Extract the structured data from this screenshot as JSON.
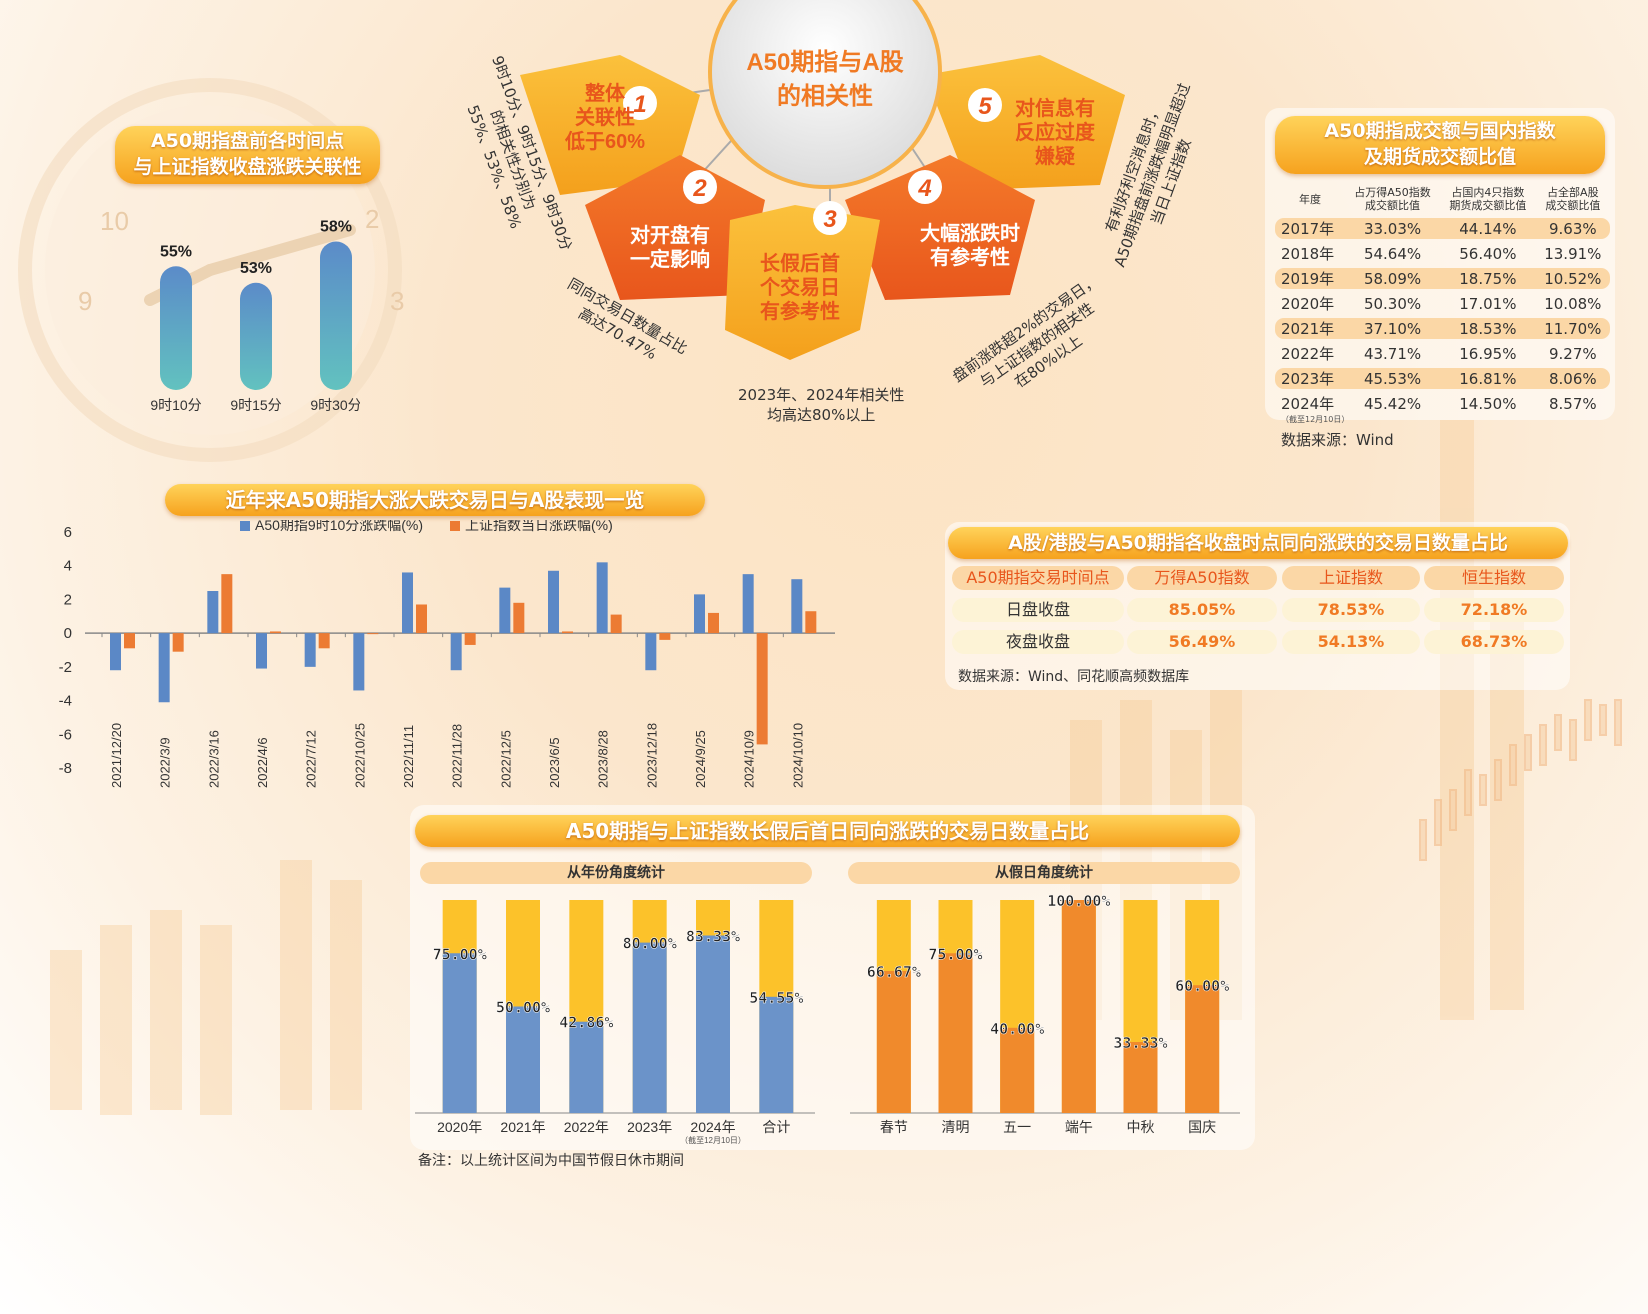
{
  "center": {
    "title_line1": "A50期指与A股",
    "title_line2": "的相关性"
  },
  "petals": [
    {
      "num": "1",
      "l1": "整体",
      "l2": "关联性",
      "l3": "低于60%"
    },
    {
      "num": "2",
      "l1": "对开盘有",
      "l2": "一定影响",
      "l3": ""
    },
    {
      "num": "3",
      "l1": "长假后首",
      "l2": "个交易日",
      "l3": "有参考性"
    },
    {
      "num": "4",
      "l1": "大幅涨跌时",
      "l2": "有参考性",
      "l3": ""
    },
    {
      "num": "5",
      "l1": "对信息有",
      "l2": "反应过度",
      "l3": "嫌疑"
    }
  ],
  "notes": {
    "n1a": "9时10分、9时15分、9时30分",
    "n1b": "的相关性分别为",
    "n1c": "55%、53%、58%",
    "n2a": "同向交易日数量占比",
    "n2b": "高达70.47%",
    "n3a": "2023年、2024年相关性",
    "n3b": "均高达80%以上",
    "n4a": "盘前涨跌超2%的交易日，",
    "n4b": "与上证指数的相关性",
    "n4c": "在80%以上",
    "n5a": "有利好利空消息时，",
    "n5b": "A50期指盘前涨跌幅明显超过",
    "n5c": "当日上证指数"
  },
  "corr": {
    "title1": "A50期指盘前各时间点",
    "title2": "与上证指数收盘涨跌关联性"
  },
  "table1": {
    "title1": "A50期指成交额与国内指数",
    "title2": "及期货成交额比值",
    "headers": [
      "年度",
      "占万得A50指数\n成交额比值",
      "占国内4只指数\n期货成交额比值",
      "占全部A股\n成交额比值"
    ],
    "rows": [
      [
        "2017年",
        "33.03%",
        "44.14%",
        "9.63%"
      ],
      [
        "2018年",
        "54.64%",
        "56.40%",
        "13.91%"
      ],
      [
        "2019年",
        "58.09%",
        "18.75%",
        "10.52%"
      ],
      [
        "2020年",
        "50.30%",
        "17.01%",
        "10.08%"
      ],
      [
        "2021年",
        "37.10%",
        "18.53%",
        "11.70%"
      ],
      [
        "2022年",
        "43.71%",
        "16.95%",
        "9.27%"
      ],
      [
        "2023年",
        "45.53%",
        "16.81%",
        "8.06%"
      ],
      [
        "2024年",
        "45.42%",
        "14.50%",
        "8.57%"
      ]
    ],
    "note_2024": "（截至12月10日）",
    "source": "数据来源：Wind"
  },
  "bigbar": {
    "title": "近年来A50期指大涨大跌交易日与A股表现一览"
  },
  "table2": {
    "title": "A股/港股与A50期指各收盘时点同向涨跌的交易日数量占比",
    "headers": [
      "A50期指交易时间点",
      "万得A50指数",
      "上证指数",
      "恒生指数"
    ],
    "rows": [
      [
        "日盘收盘",
        "85.05%",
        "78.53%",
        "72.18%"
      ],
      [
        "夜盘收盘",
        "56.49%",
        "54.13%",
        "68.73%"
      ]
    ],
    "source": "数据来源：Wind、同花顺高频数据库"
  },
  "holiday": {
    "title": "A50期指与上证指数长假后首日同向涨跌的交易日数量占比",
    "left_sub": "从年份角度统计",
    "right_sub": "从假日角度统计",
    "note_2024": "（截至12月10日）",
    "remark": "备注：以上统计区间为中国节假日休市期间"
  },
  "chart_data": [
    {
      "type": "bar",
      "title": "A50期指盘前各时间点与上证指数收盘涨跌关联性",
      "categories": [
        "9时10分",
        "9时15分",
        "9时30分"
      ],
      "values": [
        55,
        53,
        58
      ],
      "labels": [
        "55%",
        "53%",
        "58%"
      ],
      "ylim": [
        40,
        60
      ],
      "color": "#5a92c8"
    },
    {
      "type": "bar",
      "title": "近年来A50期指大涨大跌交易日与A股表现一览",
      "categories": [
        "2021/12/20",
        "2022/3/9",
        "2022/3/16",
        "2022/4/6",
        "2022/7/12",
        "2022/10/25",
        "2022/11/11",
        "2022/11/28",
        "2022/12/5",
        "2023/6/5",
        "2023/8/28",
        "2023/12/18",
        "2024/9/25",
        "2024/10/9",
        "2024/10/10"
      ],
      "series": [
        {
          "name": "A50期指9时10分涨跌幅(%)",
          "color": "#5b88c6",
          "values": [
            -2.2,
            -4.1,
            2.5,
            -2.1,
            -2.0,
            -3.4,
            3.6,
            -2.2,
            2.7,
            3.7,
            4.2,
            -2.2,
            2.3,
            3.5,
            3.2
          ]
        },
        {
          "name": "上证指数当日涨跌幅(%)",
          "color": "#ec7b33",
          "values": [
            -0.9,
            -1.1,
            3.5,
            0.1,
            -0.9,
            0.0,
            1.7,
            -0.7,
            1.8,
            0.1,
            1.1,
            -0.4,
            1.2,
            -6.6,
            1.3
          ]
        }
      ],
      "ylim": [
        -8,
        6
      ],
      "yticks": [
        "6",
        "4",
        "2",
        "0",
        "-2",
        "-4",
        "-6",
        "-8"
      ],
      "legend": "top"
    },
    {
      "type": "bar",
      "title": "从年份角度统计",
      "categories": [
        "2020年",
        "2021年",
        "2022年",
        "2023年",
        "2024年",
        "合计"
      ],
      "values": [
        75.0,
        50.0,
        42.86,
        80.0,
        83.33,
        54.55
      ],
      "labels": [
        "75.00%",
        "50.00%",
        "42.86%",
        "80.00%",
        "83.33%",
        "54.55%"
      ],
      "ylim": [
        0,
        100
      ],
      "color": "#6b93c9",
      "bg_color": "#fcc22a"
    },
    {
      "type": "bar",
      "title": "从假日角度统计",
      "categories": [
        "春节",
        "清明",
        "五一",
        "端午",
        "中秋",
        "国庆"
      ],
      "values": [
        66.67,
        75.0,
        40.0,
        100.0,
        33.33,
        60.0
      ],
      "labels": [
        "66.67%",
        "75.00%",
        "40.00%",
        "100.00%",
        "33.33%",
        "60.00%"
      ],
      "ylim": [
        0,
        100
      ],
      "color": "#f08a2c",
      "bg_color": "#fcc22a"
    }
  ]
}
